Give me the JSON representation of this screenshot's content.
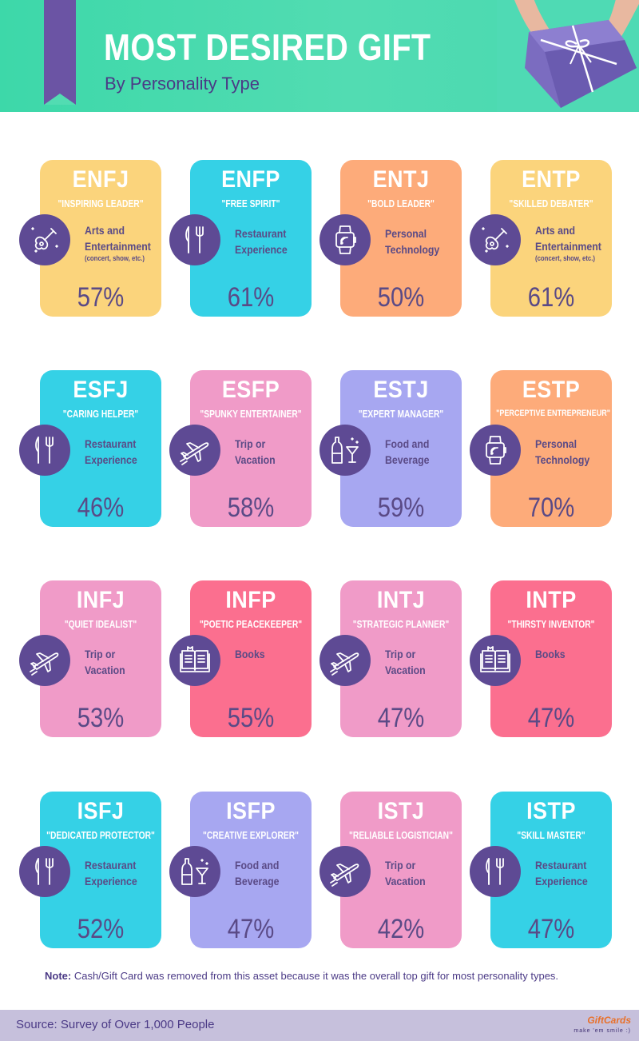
{
  "header": {
    "title": "MOST DESIRED GIFT",
    "subtitle": "By Personality Type"
  },
  "cards": [
    {
      "code": "ENFJ",
      "nickname": "\"INSPIRING LEADER\"",
      "gift": "Arts and Entertainment",
      "gift_note": "(concert, show, etc.)",
      "percent": "57%",
      "icon": "guitar-icon",
      "color": "#fbd47c"
    },
    {
      "code": "ENFP",
      "nickname": "\"FREE SPIRIT\"",
      "gift": "Restaurant Experience",
      "gift_note": "",
      "percent": "61%",
      "icon": "fork-knife-icon",
      "color": "#35d1e6"
    },
    {
      "code": "ENTJ",
      "nickname": "\"BOLD LEADER\"",
      "gift": "Personal Technology",
      "gift_note": "",
      "percent": "50%",
      "icon": "smartwatch-icon",
      "color": "#fdab7a"
    },
    {
      "code": "ENTP",
      "nickname": "\"SKILLED DEBATER\"",
      "gift": "Arts and Entertainment",
      "gift_note": "(concert, show, etc.)",
      "percent": "61%",
      "icon": "guitar-icon",
      "color": "#fbd47c"
    },
    {
      "code": "ESFJ",
      "nickname": "\"CARING HELPER\"",
      "gift": "Restaurant Experience",
      "gift_note": "",
      "percent": "46%",
      "icon": "fork-knife-icon",
      "color": "#35d1e6"
    },
    {
      "code": "ESFP",
      "nickname": "\"SPUNKY ENTERTAINER\"",
      "gift": "Trip or Vacation",
      "gift_note": "",
      "percent": "58%",
      "icon": "airplane-icon",
      "color": "#f09bc8"
    },
    {
      "code": "ESTJ",
      "nickname": "\"EXPERT MANAGER\"",
      "gift": "Food and Beverage",
      "gift_note": "",
      "percent": "59%",
      "icon": "wine-glass-icon",
      "color": "#a7a7f1"
    },
    {
      "code": "ESTP",
      "nickname": "\"PERCEPTIVE ENTREPRENEUR\"",
      "gift": "Personal Technology",
      "gift_note": "",
      "percent": "70%",
      "icon": "smartwatch-icon",
      "color": "#fdab7a"
    },
    {
      "code": "INFJ",
      "nickname": "\"QUIET IDEALIST\"",
      "gift": "Trip or Vacation",
      "gift_note": "",
      "percent": "53%",
      "icon": "airplane-icon",
      "color": "#f09bc8"
    },
    {
      "code": "INFP",
      "nickname": "\"POETIC PEACEKEEPER\"",
      "gift": "Books",
      "gift_note": "",
      "percent": "55%",
      "icon": "book-icon",
      "color": "#fb6f8f"
    },
    {
      "code": "INTJ",
      "nickname": "\"STRATEGIC PLANNER\"",
      "gift": "Trip or Vacation",
      "gift_note": "",
      "percent": "47%",
      "icon": "airplane-icon",
      "color": "#f09bc8"
    },
    {
      "code": "INTP",
      "nickname": "\"THIRSTY INVENTOR\"",
      "gift": "Books",
      "gift_note": "",
      "percent": "47%",
      "icon": "book-icon",
      "color": "#fb6f8f"
    },
    {
      "code": "ISFJ",
      "nickname": "\"DEDICATED PROTECTOR\"",
      "gift": "Restaurant Experience",
      "gift_note": "",
      "percent": "52%",
      "icon": "fork-knife-icon",
      "color": "#35d1e6"
    },
    {
      "code": "ISFP",
      "nickname": "\"CREATIVE EXPLORER\"",
      "gift": "Food and Beverage",
      "gift_note": "",
      "percent": "47%",
      "icon": "wine-glass-icon",
      "color": "#a7a7f1"
    },
    {
      "code": "ISTJ",
      "nickname": "\"RELIABLE LOGISTICIAN\"",
      "gift": "Trip or Vacation",
      "gift_note": "",
      "percent": "42%",
      "icon": "airplane-icon",
      "color": "#f09bc8"
    },
    {
      "code": "ISTP",
      "nickname": "\"SKILL MASTER\"",
      "gift": "Restaurant Experience",
      "gift_note": "",
      "percent": "47%",
      "icon": "fork-knife-icon",
      "color": "#35d1e6"
    }
  ],
  "note": {
    "label": "Note:",
    "text": " Cash/Gift Card was removed from this asset because it was the overall top gift for most personality types."
  },
  "footer": {
    "source": "Source: Survey of Over 1,000 People",
    "logo_text": "GiftCards",
    "logo_tagline": "make 'em smile :)"
  }
}
